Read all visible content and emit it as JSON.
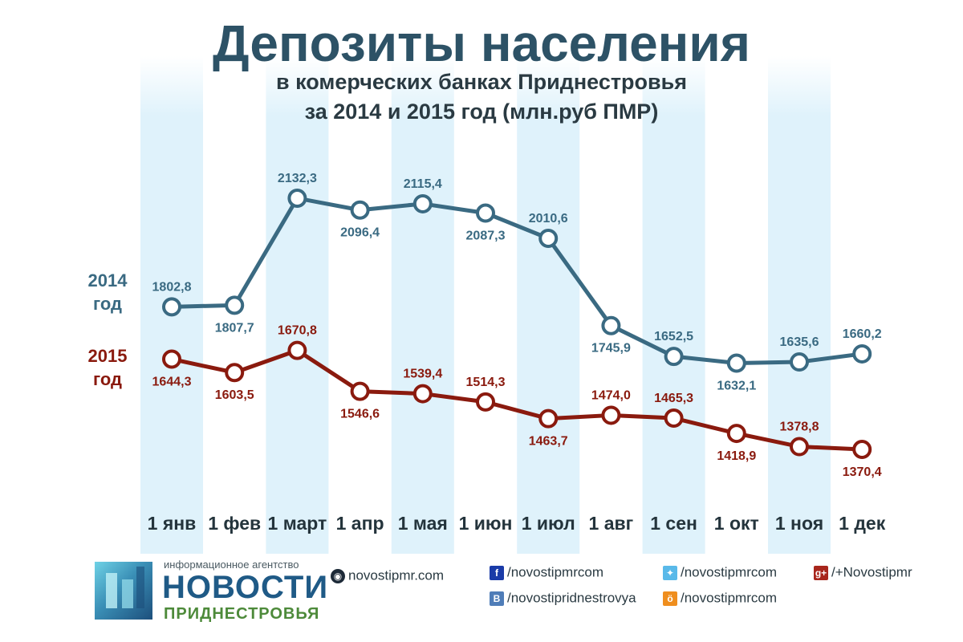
{
  "title": "Депозиты населения",
  "subtitle_line1": "в комерческих банках Приднестровья",
  "subtitle_line2": "за 2014 и 2015 год (млн.руб ПМР)",
  "colors": {
    "series_2014": "#3a6a82",
    "series_2015": "#8a1a0e",
    "stripe": "#dff2fb"
  },
  "chart_data": {
    "type": "line",
    "title": "Депозиты населения",
    "subtitle": "в комерческих банках Приднестровья за 2014 и 2015 год (млн.руб ПМР)",
    "categories": [
      "1 янв",
      "1 фев",
      "1 март",
      "1 апр",
      "1 мая",
      "1 июн",
      "1 июл",
      "1 авг",
      "1 сен",
      "1 окт",
      "1 ноя",
      "1 дек"
    ],
    "series": [
      {
        "name": "2014 год",
        "label_year": "2014",
        "label_unit": "год",
        "values": [
          1802.8,
          1807.7,
          2132.3,
          2096.4,
          2115.4,
          2087.3,
          2010.6,
          1745.9,
          1652.5,
          1632.1,
          1635.6,
          1660.2
        ],
        "labels": [
          "1802,8",
          "1807,7",
          "2132,3",
          "2096,4",
          "2115,4",
          "2087,3",
          "2010,6",
          "1745,9",
          "1652,5",
          "1632,1",
          "1635,6",
          "1660,2"
        ],
        "label_pos": [
          "above",
          "below",
          "above",
          "below",
          "above",
          "below",
          "above",
          "below",
          "above",
          "below",
          "above",
          "above"
        ]
      },
      {
        "name": "2015 год",
        "label_year": "2015",
        "label_unit": "год",
        "values": [
          1644.3,
          1603.5,
          1670.8,
          1546.6,
          1539.4,
          1514.3,
          1463.7,
          1474.0,
          1465.3,
          1418.9,
          1378.8,
          1370.4
        ],
        "labels": [
          "1644,3",
          "1603,5",
          "1670,8",
          "1546,6",
          "1539,4",
          "1514,3",
          "1463,7",
          "1474,0",
          "1465,3",
          "1418,9",
          "1378,8",
          "1370,4"
        ],
        "label_pos": [
          "below",
          "below",
          "above",
          "below",
          "above",
          "above",
          "below",
          "above",
          "above",
          "below",
          "above",
          "below"
        ]
      }
    ],
    "grid": false,
    "legend": "left"
  },
  "footer": {
    "logo_caption": "информационное агентство",
    "logo_name": "НОВОСТИ",
    "logo_sub": "ПРИДНЕСТРОВЬЯ",
    "social": {
      "site": {
        "icon": "globe-icon",
        "glyph": "◉",
        "text": "novostipmr.com"
      },
      "facebook": {
        "icon": "facebook-icon",
        "glyph": "f",
        "text": "/novostipmrcom"
      },
      "vkontakte": {
        "icon": "vk-icon",
        "glyph": "В",
        "text": "/novostipridnestrovya"
      },
      "twitter": {
        "icon": "twitter-icon",
        "glyph": "✦",
        "text": "/novostipmrcom"
      },
      "odnoklassniki": {
        "icon": "ok-icon",
        "glyph": "ö",
        "text": "/novostipmrcom"
      },
      "googleplus": {
        "icon": "googleplus-icon",
        "glyph": "g+",
        "text": "/+Novostipmr"
      }
    }
  }
}
